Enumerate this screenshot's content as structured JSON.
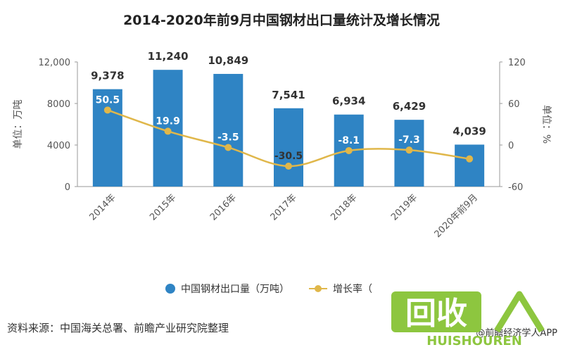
{
  "title": "2014-2020年前9月中国钢材出口量统计及增长情况",
  "chart_data": {
    "type": "bar",
    "categories": [
      "2014年",
      "2015年",
      "2016年",
      "2017年",
      "2018年",
      "2019年",
      "2020年前9月"
    ],
    "series": [
      {
        "name": "中国钢材出口量（万吨）",
        "type": "bar",
        "axis": "left",
        "values": [
          9378,
          11240,
          10849,
          7541,
          6934,
          6429,
          4039
        ],
        "labels": [
          "9,378",
          "11,240",
          "10,849",
          "7,541",
          "6,934",
          "6,429",
          "4,039"
        ],
        "color": "#2f84c4"
      },
      {
        "name": "增长率（%）",
        "type": "line",
        "axis": "right",
        "values": [
          50.5,
          19.9,
          -3.5,
          -30.5,
          -8.1,
          -7.3,
          -20
        ],
        "labels": [
          "50.5",
          "19.9",
          "-3.5",
          "-30.5",
          "-8.1",
          "-7.3",
          ""
        ],
        "color": "#e0b74a"
      }
    ],
    "y_left": {
      "label": "单位：万吨",
      "ylim": [
        0,
        12000
      ],
      "ticks": [
        "0",
        "4000",
        "8000",
        "12,000"
      ],
      "tick_values": [
        0,
        4000,
        8000,
        12000
      ]
    },
    "y_right": {
      "label": "单位：%",
      "ylim": [
        -60,
        120
      ],
      "ticks": [
        "-60",
        "0",
        "60",
        "120"
      ],
      "tick_values": [
        -60,
        0,
        60,
        120
      ]
    },
    "legend_position": "bottom",
    "grid": false
  },
  "legend": {
    "bar_label": "中国钢材出口量（万吨）",
    "line_label": "增长率（"
  },
  "source": "资料来源：中国海关总署、前瞻产业研究院整理",
  "credit": "@前瞻经济学人APP",
  "watermark": {
    "big_text": "回收",
    "small_text": "HUISHOUREN"
  }
}
